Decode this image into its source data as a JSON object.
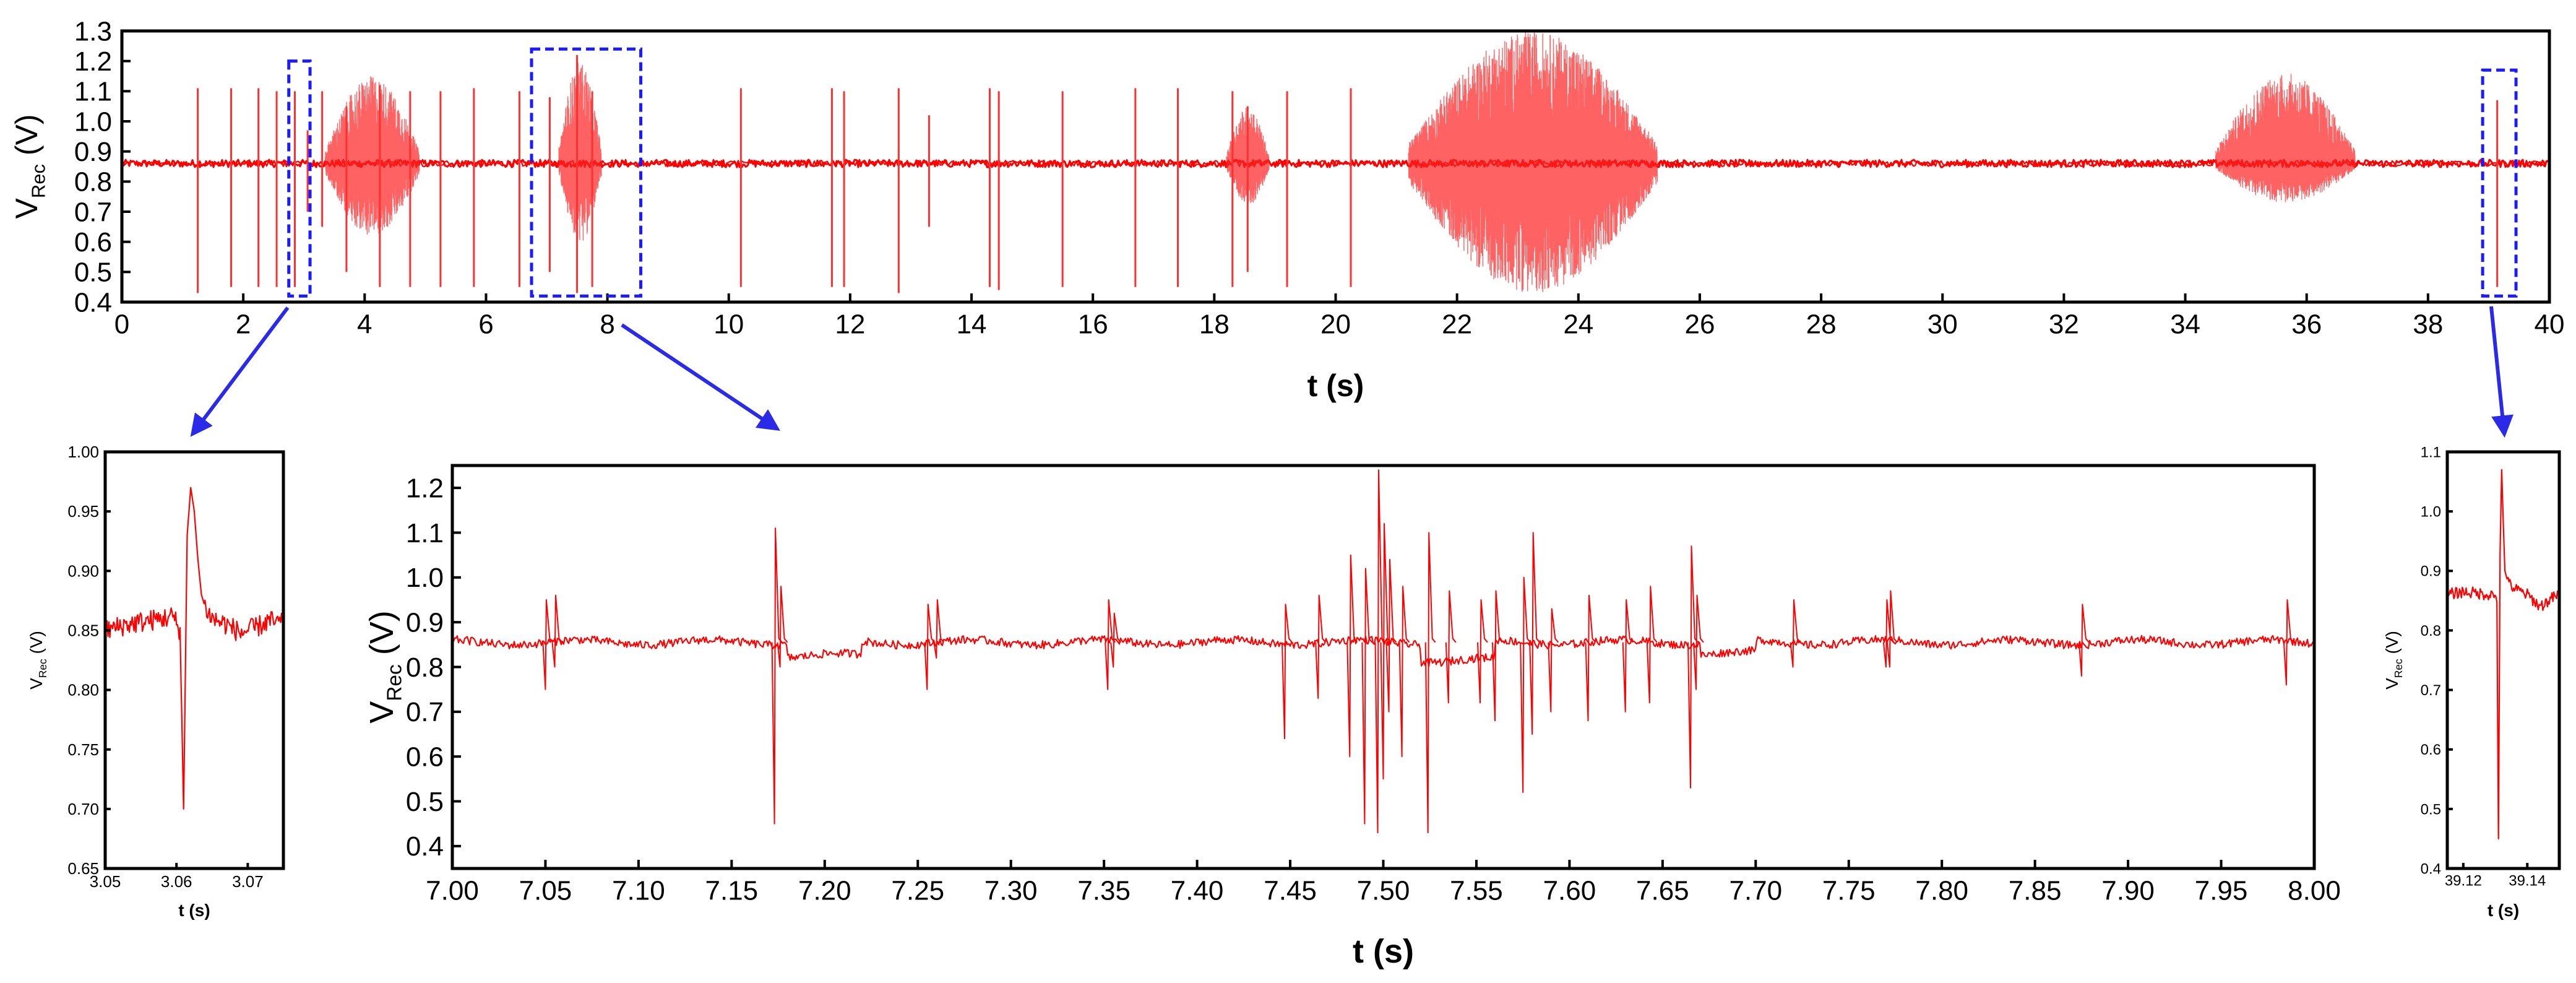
{
  "chart_data": [
    {
      "id": "overview",
      "type": "line",
      "xlabel": "t (s)",
      "ylabel_main": "V",
      "ylabel_sub": "Rec",
      "ylabel_unit": " (V)",
      "xlim": [
        0,
        40
      ],
      "ylim": [
        0.4,
        1.3
      ],
      "xticks": [
        0,
        2,
        4,
        6,
        8,
        10,
        12,
        14,
        16,
        18,
        20,
        22,
        24,
        26,
        28,
        30,
        32,
        34,
        36,
        38,
        40
      ],
      "xtick_labels": [
        "0",
        "2",
        "4",
        "6",
        "8",
        "10",
        "12",
        "14",
        "16",
        "18",
        "20",
        "22",
        "24",
        "26",
        "28",
        "30",
        "32",
        "34",
        "36",
        "38",
        "40"
      ],
      "yticks": [
        0.4,
        0.5,
        0.6,
        0.7,
        0.8,
        0.9,
        1.0,
        1.1,
        1.2,
        1.3
      ],
      "ytick_labels": [
        "0.4",
        "0.5",
        "0.6",
        "0.7",
        "0.8",
        "0.9",
        "1.0",
        "1.1",
        "1.2",
        "1.3"
      ],
      "baseline": 0.86,
      "series": [
        {
          "spikes_t": [
            1.25,
            1.8,
            2.25,
            2.55,
            2.85,
            3.06,
            3.3,
            3.7,
            4.25,
            4.75,
            5.25,
            5.8,
            6.55,
            7.05,
            7.5,
            7.75,
            10.2,
            11.7,
            11.9,
            12.8,
            13.3,
            14.3,
            14.45,
            15.5,
            16.7,
            17.4,
            18.3,
            18.55,
            19.2,
            20.25,
            39.14
          ],
          "spikes_max": [
            1.11,
            1.11,
            1.11,
            1.1,
            1.1,
            0.97,
            1.1,
            1.05,
            1.12,
            1.1,
            1.1,
            1.11,
            1.1,
            1.08,
            1.22,
            1.1,
            1.11,
            1.11,
            1.1,
            1.11,
            1.02,
            1.11,
            1.1,
            1.1,
            1.11,
            1.11,
            1.1,
            1.05,
            1.1,
            1.11,
            1.07
          ],
          "spikes_min": [
            0.43,
            0.45,
            0.45,
            0.45,
            0.45,
            0.7,
            0.65,
            0.5,
            0.45,
            0.45,
            0.45,
            0.45,
            0.45,
            0.5,
            0.43,
            0.45,
            0.45,
            0.45,
            0.45,
            0.43,
            0.65,
            0.45,
            0.44,
            0.45,
            0.45,
            0.45,
            0.45,
            0.5,
            0.45,
            0.45,
            0.45
          ],
          "bursts": [
            {
              "t_start": 3.35,
              "t_end": 4.9,
              "max": 1.15,
              "min": 0.62
            },
            {
              "t_start": 7.2,
              "t_end": 7.9,
              "max": 1.2,
              "min": 0.6
            },
            {
              "t_start": 18.2,
              "t_end": 18.9,
              "max": 1.05,
              "min": 0.72
            },
            {
              "t_start": 21.2,
              "t_end": 25.3,
              "max": 1.3,
              "min": 0.43
            },
            {
              "t_start": 34.5,
              "t_end": 36.8,
              "max": 1.16,
              "min": 0.73
            }
          ]
        }
      ],
      "zoom_boxes": [
        {
          "t_start": 2.75,
          "t_end": 3.1,
          "v_low": 0.42,
          "v_high": 1.2
        },
        {
          "t_start": 6.75,
          "t_end": 8.55,
          "v_low": 0.42,
          "v_high": 1.24
        },
        {
          "t_start": 38.9,
          "t_end": 39.45,
          "v_low": 0.42,
          "v_high": 1.17
        }
      ]
    },
    {
      "id": "zoom-left",
      "type": "line",
      "xlabel": "t (s)",
      "ylabel_main": "V",
      "ylabel_sub": "Rec",
      "ylabel_unit": " (V)",
      "xlim": [
        3.05,
        3.075
      ],
      "ylim": [
        0.65,
        1.0
      ],
      "xticks": [
        3.05,
        3.06,
        3.07
      ],
      "xtick_labels": [
        "3.05",
        "3.06",
        "3.07"
      ],
      "yticks": [
        0.65,
        0.7,
        0.75,
        0.8,
        0.85,
        0.9,
        0.95,
        1.0
      ],
      "ytick_labels": [
        "0.65",
        "0.70",
        "0.75",
        "0.80",
        "0.85",
        "0.90",
        "0.95",
        "1.00"
      ],
      "baseline": 0.855,
      "series": [
        {
          "x": [
            3.05,
            3.053,
            3.056,
            3.058,
            3.0595,
            3.0605,
            3.061,
            3.0615,
            3.062,
            3.0625,
            3.063,
            3.0635,
            3.064,
            3.0645,
            3.065,
            3.067,
            3.069,
            3.071,
            3.073,
            3.075
          ],
          "y": [
            0.85,
            0.855,
            0.858,
            0.86,
            0.862,
            0.85,
            0.7,
            0.93,
            0.97,
            0.95,
            0.91,
            0.88,
            0.87,
            0.865,
            0.86,
            0.855,
            0.848,
            0.852,
            0.858,
            0.855
          ]
        }
      ]
    },
    {
      "id": "zoom-main",
      "type": "line",
      "xlabel": "t (s)",
      "ylabel_main": "V",
      "ylabel_sub": "Rec",
      "ylabel_unit": " (V)",
      "xlim": [
        7.0,
        8.0
      ],
      "ylim": [
        0.35,
        1.25
      ],
      "xticks": [
        7.0,
        7.05,
        7.1,
        7.15,
        7.2,
        7.25,
        7.3,
        7.35,
        7.4,
        7.45,
        7.5,
        7.55,
        7.6,
        7.65,
        7.7,
        7.75,
        7.8,
        7.85,
        7.9,
        7.95,
        8.0
      ],
      "xtick_labels": [
        "7.00",
        "7.05",
        "7.10",
        "7.15",
        "7.20",
        "7.25",
        "7.30",
        "7.35",
        "7.40",
        "7.45",
        "7.50",
        "7.55",
        "7.60",
        "7.65",
        "7.70",
        "7.75",
        "7.80",
        "7.85",
        "7.90",
        "7.95",
        "8.00"
      ],
      "yticks": [
        0.4,
        0.5,
        0.6,
        0.7,
        0.8,
        0.9,
        1.0,
        1.1,
        1.2
      ],
      "ytick_labels": [
        "0.4",
        "0.5",
        "0.6",
        "0.7",
        "0.8",
        "0.9",
        "1.0",
        "1.1",
        "1.2"
      ],
      "baseline": 0.855,
      "series": [
        {
          "spikes_t": [
            7.05,
            7.055,
            7.173,
            7.176,
            7.255,
            7.26,
            7.352,
            7.355,
            7.447,
            7.465,
            7.482,
            7.49,
            7.497,
            7.5,
            7.503,
            7.51,
            7.524,
            7.535,
            7.552,
            7.56,
            7.575,
            7.58,
            7.59,
            7.61,
            7.63,
            7.643,
            7.665,
            7.668,
            7.72,
            7.77,
            7.772,
            7.875,
            7.985
          ],
          "spikes_max": [
            0.95,
            0.96,
            1.11,
            0.98,
            0.94,
            0.95,
            0.95,
            0.92,
            0.94,
            0.96,
            1.05,
            1.02,
            1.24,
            1.12,
            1.04,
            0.98,
            1.1,
            0.97,
            0.95,
            0.97,
            1.0,
            1.1,
            0.93,
            0.96,
            0.95,
            0.98,
            1.07,
            0.96,
            0.95,
            0.95,
            0.97,
            0.94,
            0.95
          ],
          "spikes_min": [
            0.75,
            0.8,
            0.45,
            0.8,
            0.75,
            0.82,
            0.75,
            0.8,
            0.64,
            0.73,
            0.6,
            0.45,
            0.43,
            0.55,
            0.7,
            0.6,
            0.43,
            0.72,
            0.72,
            0.68,
            0.52,
            0.65,
            0.7,
            0.68,
            0.7,
            0.72,
            0.53,
            0.75,
            0.8,
            0.8,
            0.8,
            0.78,
            0.76
          ]
        }
      ]
    },
    {
      "id": "zoom-right",
      "type": "line",
      "xlabel": "t (s)",
      "ylabel_main": "V",
      "ylabel_sub": "Rec",
      "ylabel_unit": " (V)",
      "xlim": [
        39.115,
        39.15
      ],
      "ylim": [
        0.4,
        1.1
      ],
      "xticks": [
        39.12,
        39.14
      ],
      "xtick_labels": [
        "39.12",
        "39.14"
      ],
      "yticks": [
        0.4,
        0.5,
        0.6,
        0.7,
        0.8,
        0.9,
        1.0,
        1.1
      ],
      "ytick_labels": [
        "0.4",
        "0.5",
        "0.6",
        "0.7",
        "0.8",
        "0.9",
        "1.0",
        "1.1"
      ],
      "baseline": 0.86,
      "series": [
        {
          "x": [
            39.115,
            39.12,
            39.125,
            39.129,
            39.1305,
            39.131,
            39.1315,
            39.132,
            39.1325,
            39.133,
            39.134,
            39.136,
            39.14,
            39.144,
            39.148,
            39.15
          ],
          "y": [
            0.86,
            0.865,
            0.862,
            0.86,
            0.855,
            0.45,
            0.93,
            1.07,
            0.98,
            0.9,
            0.88,
            0.87,
            0.86,
            0.84,
            0.855,
            0.86
          ]
        }
      ]
    }
  ]
}
